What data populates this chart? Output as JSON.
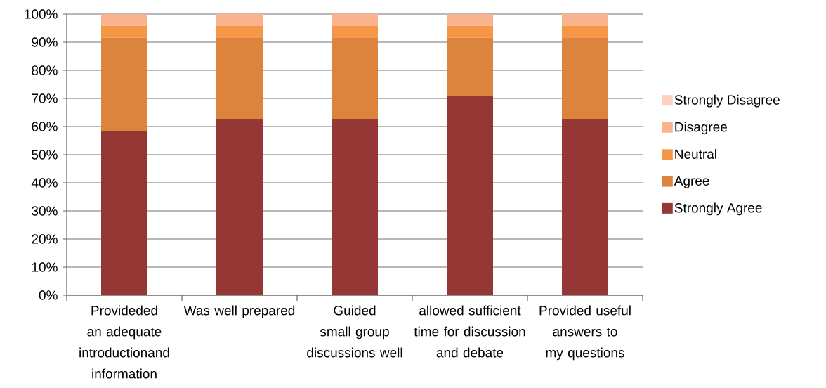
{
  "chart_data": {
    "type": "bar",
    "stacked": true,
    "categories": [
      "Provideded an adequate introductionand information",
      "Was well prepared",
      "Guided small group discussions well",
      "allowed sufficient time for discussion and debate",
      "Provided useful answers to my questions"
    ],
    "series": [
      {
        "name": "Strongly Agree",
        "color": "#953735",
        "values": [
          58.3,
          62.5,
          62.5,
          70.8,
          62.5
        ]
      },
      {
        "name": "Agree",
        "color": "#dc843d",
        "values": [
          33.3,
          29.2,
          29.2,
          20.8,
          29.2
        ]
      },
      {
        "name": "Neutral",
        "color": "#f79646",
        "values": [
          4.2,
          4.2,
          4.2,
          4.2,
          4.2
        ]
      },
      {
        "name": "Disagree",
        "color": "#f9b48f",
        "values": [
          4.2,
          4.2,
          4.2,
          4.2,
          4.2
        ]
      },
      {
        "name": "Strongly Disagree",
        "color": "#fcd0b9",
        "values": [
          0,
          0,
          0,
          0,
          0
        ]
      }
    ],
    "ylim": [
      0,
      100
    ],
    "yticks": [
      {
        "value": 0,
        "label": "0%"
      },
      {
        "value": 10,
        "label": "10%"
      },
      {
        "value": 20,
        "label": "20%"
      },
      {
        "value": 30,
        "label": "30%"
      },
      {
        "value": 40,
        "label": "40%"
      },
      {
        "value": 50,
        "label": "50%"
      },
      {
        "value": 60,
        "label": "60%"
      },
      {
        "value": 70,
        "label": "70%"
      },
      {
        "value": 80,
        "label": "80%"
      },
      {
        "value": 90,
        "label": "90%"
      },
      {
        "value": 100,
        "label": "100%"
      }
    ],
    "grid": "y",
    "legend": "right"
  }
}
